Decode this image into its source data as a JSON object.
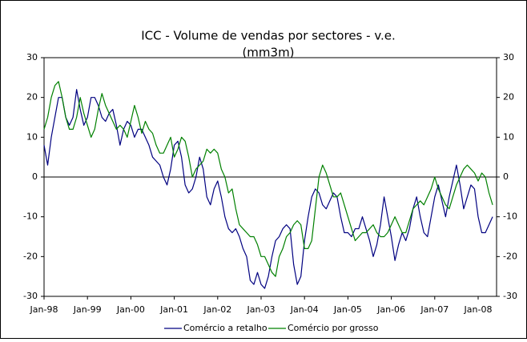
{
  "chart_data": {
    "type": "line",
    "title": "ICC - Volume de vendas por sectores - v.e.",
    "subtitle": "(mm3m)",
    "categories": [
      "Jan-98",
      null,
      null,
      null,
      null,
      null,
      null,
      null,
      null,
      null,
      null,
      null,
      "Jan-99",
      null,
      null,
      null,
      null,
      null,
      null,
      null,
      null,
      null,
      null,
      null,
      "Jan-00",
      null,
      null,
      null,
      null,
      null,
      null,
      null,
      null,
      null,
      null,
      null,
      "Jan-01",
      null,
      null,
      null,
      null,
      null,
      null,
      null,
      null,
      null,
      null,
      null,
      "Jan-02",
      null,
      null,
      null,
      null,
      null,
      null,
      null,
      null,
      null,
      null,
      null,
      "Jan-03",
      null,
      null,
      null,
      null,
      null,
      null,
      null,
      null,
      null,
      null,
      null,
      "Jan-04",
      null,
      null,
      null,
      null,
      null,
      null,
      null,
      null,
      null,
      null,
      null,
      "Jan-05",
      null,
      null,
      null,
      null,
      null,
      null,
      null,
      null,
      null,
      null,
      null,
      "Jan-06",
      null,
      null,
      null,
      null,
      null,
      null,
      null,
      null,
      null,
      null,
      null,
      "Jan-07",
      null,
      null,
      null,
      null,
      null,
      null,
      null,
      null,
      null,
      null,
      null,
      "Jan-08",
      null,
      null,
      null,
      null
    ],
    "series": [
      {
        "name": "Comércio a retalho",
        "color": "#000080",
        "values": [
          8,
          3,
          10,
          15,
          20,
          20,
          15,
          13,
          15,
          22,
          17,
          13,
          15,
          20,
          20,
          18,
          15,
          14,
          16,
          17,
          13,
          8,
          12,
          14,
          13,
          10,
          12,
          12,
          10,
          8,
          5,
          4,
          3,
          0,
          -2,
          2,
          8,
          9,
          5,
          -2,
          -4,
          -3,
          0,
          5,
          2,
          -5,
          -7,
          -3,
          -1,
          -5,
          -10,
          -13,
          -14,
          -13,
          -15,
          -18,
          -20,
          -26,
          -27,
          -24,
          -27,
          -28,
          -25,
          -20,
          -16,
          -15,
          -13,
          -12,
          -13,
          -22,
          -27,
          -25,
          -16,
          -10,
          -5,
          -3,
          -4,
          -7,
          -8,
          -6,
          -4,
          -5,
          -10,
          -14,
          -14,
          -15,
          -13,
          -13,
          -10,
          -13,
          -16,
          -20,
          -17,
          -12,
          -5,
          -10,
          -15,
          -21,
          -17,
          -14,
          -16,
          -13,
          -8,
          -5,
          -10,
          -14,
          -15,
          -10,
          -5,
          -2,
          -6,
          -10,
          -5,
          -1,
          3,
          -2,
          -8,
          -5,
          -2,
          -3,
          -10,
          -14,
          -14,
          -12,
          -10
        ]
      },
      {
        "name": "Comércio por grosso",
        "color": "#008000",
        "values": [
          12,
          15,
          20,
          23,
          24,
          20,
          15,
          12,
          12,
          15,
          20,
          16,
          13,
          10,
          12,
          17,
          21,
          18,
          16,
          14,
          12,
          13,
          12,
          10,
          14,
          18,
          15,
          11,
          14,
          12,
          11,
          8,
          6,
          6,
          8,
          10,
          5,
          7,
          10,
          9,
          5,
          0,
          2,
          3,
          4,
          7,
          6,
          7,
          6,
          2,
          0,
          -4,
          -3,
          -8,
          -12,
          -13,
          -14,
          -15,
          -15,
          -17,
          -20,
          -20,
          -22,
          -24,
          -25,
          -20,
          -18,
          -15,
          -14,
          -12,
          -11,
          -12,
          -18,
          -18,
          -16,
          -8,
          0,
          3,
          1,
          -2,
          -5,
          -5,
          -4,
          -7,
          -10,
          -13,
          -16,
          -15,
          -14,
          -14,
          -13,
          -12,
          -14,
          -15,
          -15,
          -14,
          -12,
          -10,
          -12,
          -14,
          -14,
          -11,
          -8,
          -7,
          -6,
          -7,
          -5,
          -3,
          0,
          -3,
          -5,
          -7,
          -8,
          -5,
          -2,
          0,
          2,
          3,
          2,
          1,
          -1,
          1,
          0,
          -4,
          -7
        ]
      }
    ],
    "ylim": [
      -30,
      30
    ],
    "yticks": [
      -30,
      -20,
      -10,
      0,
      10,
      20,
      30
    ]
  }
}
